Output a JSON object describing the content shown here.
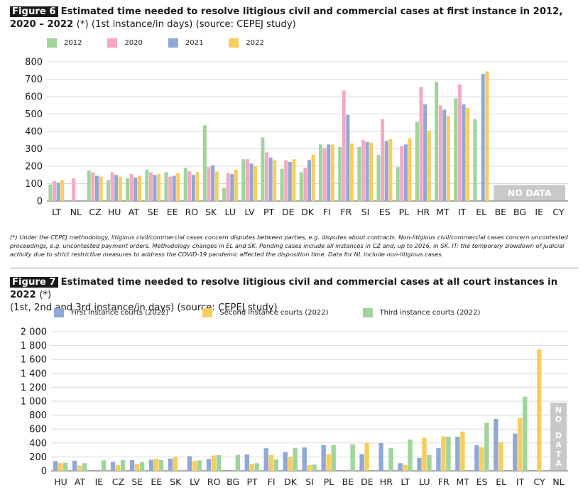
{
  "figure6": {
    "tag": "Figure 6",
    "title_bold": "Estimated time needed to resolve litigious civil and commercial cases at first instance in 2012, 2020 – 2022",
    "title_rest": "(*) (1st instance/in days) (source: CEPEJ study)",
    "note": "(*) Under the CEPEJ methodology, litigious civil/commercial cases concern disputes between parties, e.g. disputes about contracts. Non-litigious civil/commercial cases concern uncontested proceedings, e.g. uncontested payment orders. Methodology changes in EL and SK. Pending cases include all instances in CZ and, up to 2016, in SK. IT: the temporary slowdown of judicial activity due to strict restrictive measures to address the COVID-19 pandemic affected the disposition time. Data for NL include non-litigious cases.",
    "no_data_label": "NO DATA"
  },
  "figure7": {
    "tag": "Figure 7",
    "title_bold": "Estimated time needed to resolve litigious civil and commercial cases at all court instances in 2022",
    "title_rest1": "(*)",
    "title_rest2": "(1st, 2nd and 3rd instance/in days) (source: CEPEJ study)",
    "no_data_label": "NO DATA"
  },
  "chart_data": [
    {
      "type": "bar",
      "title": "Estimated time needed to resolve litigious civil and commercial cases at first instance in 2012, 2020 – 2022",
      "ylim": [
        0,
        800
      ],
      "yticks": [
        "0",
        "100",
        "200",
        "300",
        "400",
        "500",
        "600",
        "700",
        "800"
      ],
      "grid": true,
      "legend_position": "top",
      "categories": [
        "LT",
        "NL",
        "CZ",
        "HU",
        "AT",
        "SE",
        "EE",
        "RO",
        "SK",
        "LU",
        "LV",
        "PT",
        "DE",
        "DK",
        "FI",
        "FR",
        "SI",
        "ES",
        "PL",
        "HR",
        "MT",
        "IT",
        "EL",
        "BE",
        "BG",
        "IE",
        "CY"
      ],
      "series": [
        {
          "name": "2012",
          "color": "#9fd49a",
          "values": [
            95,
            null,
            175,
            120,
            130,
            180,
            165,
            190,
            435,
            75,
            240,
            365,
            185,
            165,
            325,
            310,
            310,
            265,
            195,
            455,
            685,
            590,
            470,
            null,
            null,
            null,
            null
          ]
        },
        {
          "name": "2020",
          "color": "#f5a8c4",
          "values": [
            115,
            130,
            165,
            165,
            155,
            165,
            140,
            170,
            195,
            160,
            240,
            280,
            235,
            190,
            305,
            635,
            350,
            470,
            315,
            655,
            550,
            670,
            null,
            null,
            null,
            null,
            null
          ]
        },
        {
          "name": "2021",
          "color": "#8fa8d6",
          "values": [
            105,
            null,
            145,
            150,
            135,
            150,
            145,
            150,
            205,
            155,
            215,
            250,
            225,
            235,
            325,
            495,
            340,
            345,
            325,
            555,
            525,
            555,
            730,
            null,
            null,
            null,
            null
          ]
        },
        {
          "name": "2022",
          "color": "#f7cd5c",
          "values": [
            120,
            null,
            140,
            140,
            145,
            155,
            160,
            165,
            170,
            180,
            200,
            235,
            240,
            265,
            325,
            330,
            335,
            355,
            360,
            405,
            490,
            535,
            745,
            null,
            null,
            null,
            null
          ]
        }
      ],
      "no_data": [
        "BE",
        "BG",
        "IE",
        "CY"
      ]
    },
    {
      "type": "bar",
      "title": "Estimated time needed to resolve litigious civil and commercial cases at all court instances in 2022",
      "ylim": [
        0,
        2000
      ],
      "yticks": [
        "0",
        "200",
        "400",
        "600",
        "800",
        "1 000",
        "1 200",
        "1 400",
        "1 600",
        "1 800",
        "2 000"
      ],
      "grid": true,
      "legend_position": "top",
      "categories": [
        "HU",
        "AT",
        "IE",
        "CZ",
        "SE",
        "EE",
        "SK",
        "LV",
        "RO",
        "BG",
        "PT",
        "FI",
        "DK",
        "SI",
        "PL",
        "BE",
        "DE",
        "HR",
        "LT",
        "LU",
        "FR",
        "MT",
        "ES",
        "EL",
        "IT",
        "CY",
        "NL"
      ],
      "series": [
        {
          "name": "First instance courts (2022)",
          "color": "#8fa8d6",
          "values": [
            140,
            145,
            null,
            130,
            155,
            160,
            175,
            210,
            170,
            null,
            235,
            325,
            270,
            335,
            370,
            null,
            240,
            400,
            110,
            185,
            325,
            490,
            370,
            745,
            535,
            null,
            null
          ]
        },
        {
          "name": "Second instance courts (2022)",
          "color": "#f7cd5c",
          "values": [
            110,
            75,
            null,
            80,
            100,
            175,
            205,
            140,
            220,
            null,
            100,
            230,
            200,
            85,
            240,
            null,
            400,
            null,
            85,
            475,
            495,
            565,
            340,
            415,
            760,
            1745,
            null
          ]
        },
        {
          "name": "Third instance courts (2022)",
          "color": "#9fd49a",
          "values": [
            115,
            110,
            150,
            155,
            125,
            155,
            null,
            150,
            225,
            230,
            110,
            165,
            330,
            90,
            370,
            380,
            null,
            330,
            450,
            225,
            490,
            null,
            690,
            null,
            1065,
            null,
            null
          ]
        }
      ],
      "no_data": [
        "NL"
      ]
    }
  ]
}
